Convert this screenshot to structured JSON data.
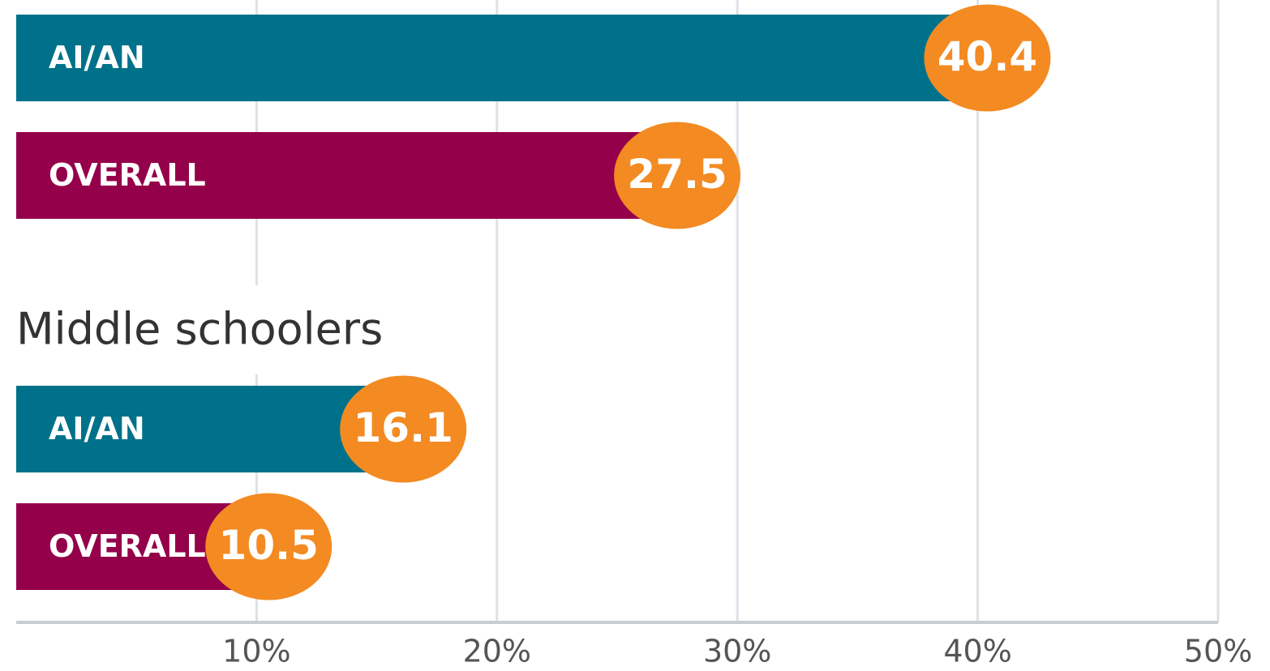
{
  "chart_data": {
    "type": "bar",
    "orientation": "horizontal",
    "xlim": [
      0,
      50
    ],
    "xticks": [
      {
        "value": 10,
        "label": "10%"
      },
      {
        "value": 20,
        "label": "20%"
      },
      {
        "value": 30,
        "label": "30%"
      },
      {
        "value": 40,
        "label": "40%"
      },
      {
        "value": 50,
        "label": "50%"
      }
    ],
    "grid": true,
    "colors": [
      "#00718a",
      "#94004a"
    ],
    "badge_color": "#f38a22",
    "groups": [
      {
        "categories": [
          "AI/AN",
          "OVERALL"
        ],
        "values": [
          40.4,
          27.5
        ]
      },
      {
        "title": "Middle schoolers",
        "categories": [
          "AI/AN",
          "OVERALL"
        ],
        "values": [
          16.1,
          10.5
        ]
      }
    ]
  }
}
